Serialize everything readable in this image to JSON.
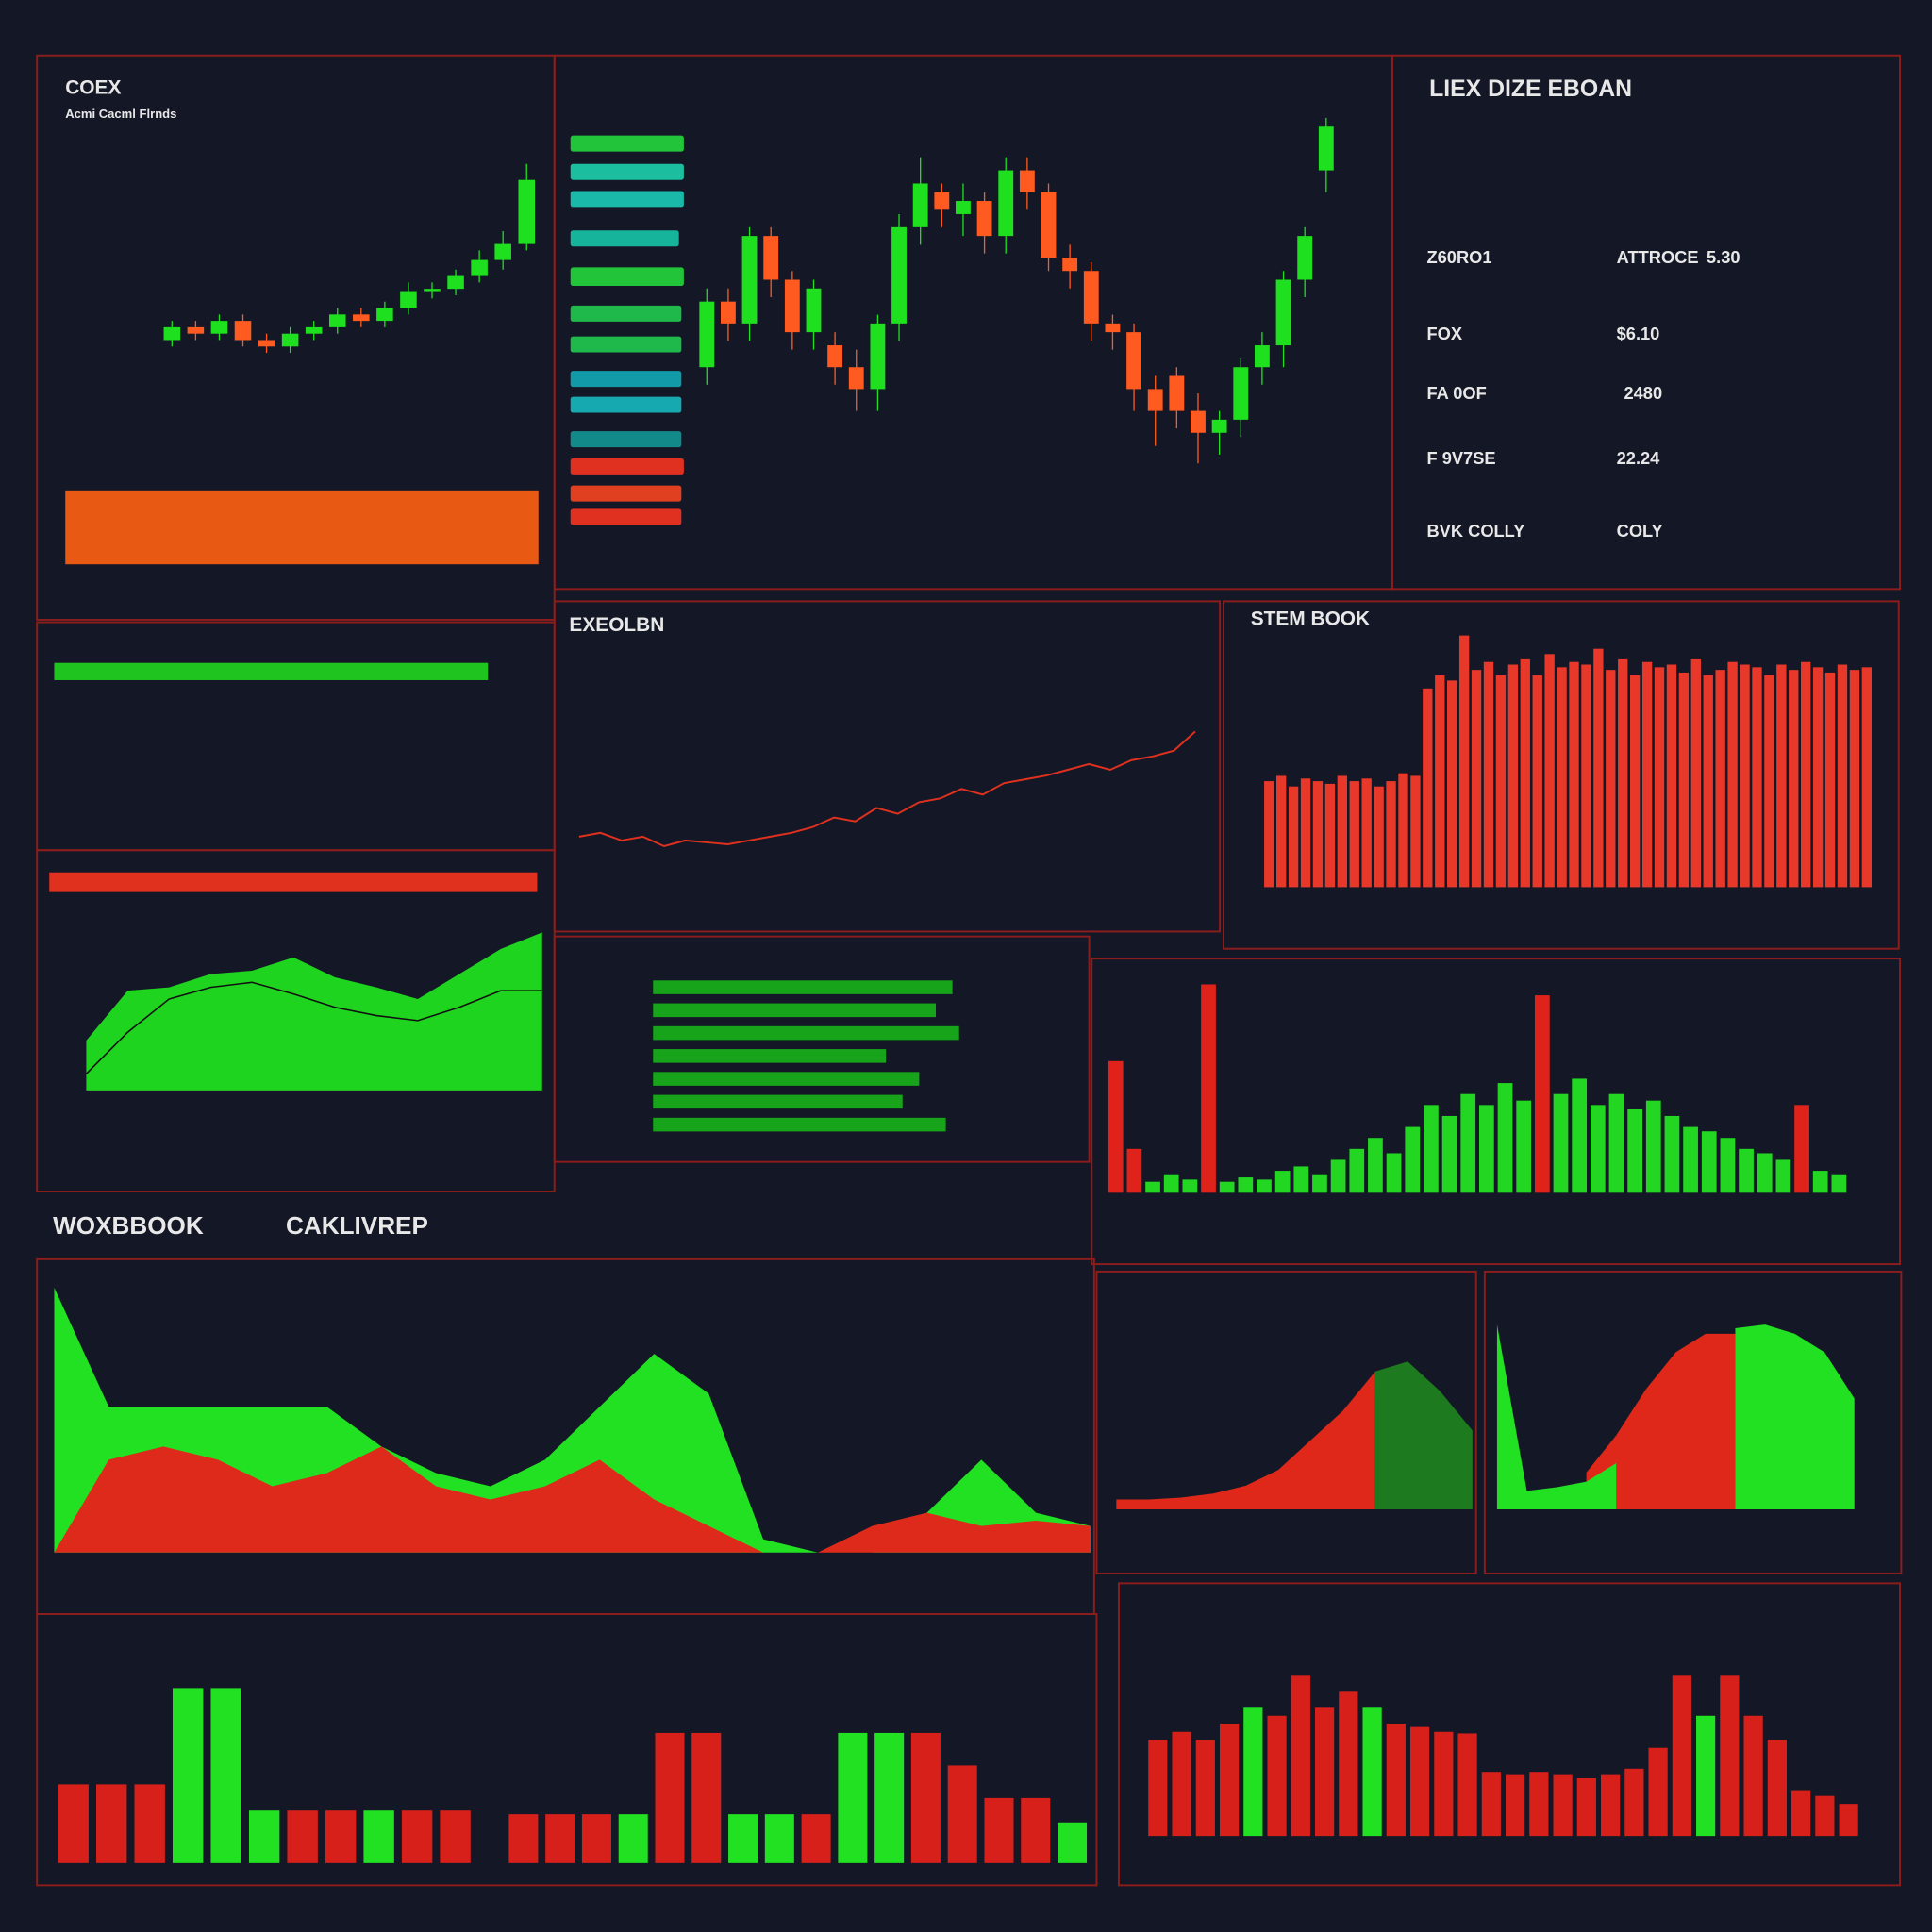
{
  "page": {
    "labels": [
      "WOXBBOOK",
      "CAKLIVREP"
    ],
    "info": {
      "title": "LIEX DIZE EBOAN",
      "rows": [
        [
          "Z60RO1",
          "ATTROCE",
          "5.30"
        ],
        [
          "FOX",
          "$6.10"
        ],
        [
          "FA 0OF",
          "2480"
        ],
        [
          "F 9V7SE",
          "22.24"
        ],
        [
          "BVK COLLY",
          "COLY"
        ]
      ]
    }
  },
  "chart_data": [
    {
      "type": "candlestick",
      "title": "COEX",
      "subtitle": "Acmi Cacml Flrnds",
      "ylim": [
        0,
        100
      ],
      "open": [
        40,
        44,
        42,
        46,
        40,
        38,
        42,
        44,
        48,
        46,
        50,
        55,
        56,
        60,
        65,
        70
      ],
      "close": [
        44,
        42,
        46,
        40,
        38,
        42,
        44,
        48,
        46,
        50,
        55,
        56,
        60,
        65,
        70,
        90
      ],
      "high": [
        46,
        46,
        48,
        48,
        42,
        44,
        46,
        50,
        50,
        52,
        58,
        58,
        62,
        68,
        74,
        95
      ],
      "low": [
        38,
        40,
        40,
        38,
        36,
        36,
        40,
        42,
        44,
        44,
        48,
        53,
        54,
        58,
        62,
        68
      ]
    },
    {
      "type": "candlestick",
      "ylim": [
        0,
        100
      ],
      "open": [
        40,
        55,
        50,
        70,
        60,
        48,
        45,
        40,
        35,
        50,
        72,
        80,
        75,
        78,
        70,
        85,
        80,
        65,
        62,
        50,
        48,
        35,
        38,
        30,
        25,
        28,
        40,
        45,
        60,
        85
      ],
      "close": [
        55,
        50,
        70,
        60,
        48,
        58,
        40,
        35,
        50,
        72,
        82,
        76,
        78,
        70,
        85,
        80,
        65,
        62,
        50,
        48,
        35,
        30,
        30,
        25,
        28,
        40,
        45,
        60,
        70,
        95
      ],
      "high": [
        58,
        58,
        72,
        72,
        62,
        60,
        48,
        44,
        52,
        75,
        88,
        82,
        82,
        80,
        88,
        88,
        82,
        68,
        64,
        52,
        50,
        38,
        40,
        34,
        30,
        42,
        48,
        62,
        72,
        97
      ],
      "low": [
        36,
        46,
        46,
        56,
        44,
        44,
        36,
        30,
        30,
        46,
        68,
        72,
        70,
        66,
        66,
        76,
        62,
        58,
        46,
        44,
        30,
        22,
        26,
        18,
        20,
        24,
        36,
        40,
        56,
        80
      ]
    },
    {
      "type": "line",
      "title": "EXEOLBN",
      "color": "#e0301e",
      "ylim": [
        0,
        100
      ],
      "values": [
        20,
        22,
        18,
        20,
        15,
        18,
        17,
        16,
        18,
        20,
        22,
        25,
        30,
        28,
        35,
        32,
        38,
        40,
        45,
        42,
        48,
        50,
        52,
        55,
        58,
        55,
        60,
        62,
        65,
        75
      ]
    },
    {
      "type": "bar",
      "title": "STEM BOOK",
      "ylim": [
        0,
        100
      ],
      "series": [
        {
          "color": "#e8382a",
          "values": [
            40,
            42,
            38,
            41,
            40,
            39,
            42,
            40,
            41,
            38,
            40,
            43,
            42,
            75,
            80,
            78,
            95,
            82,
            85,
            80,
            84,
            86,
            80,
            88,
            83,
            85,
            84,
            90,
            82,
            86,
            80,
            85,
            83,
            84,
            81,
            86,
            80,
            82,
            85,
            84,
            83,
            80,
            84,
            82,
            85,
            83,
            81,
            84,
            82,
            83
          ]
        }
      ]
    },
    {
      "type": "area",
      "ylim": [
        0,
        100
      ],
      "series": [
        {
          "color": "#1fd41f",
          "values": [
            30,
            60,
            62,
            70,
            72,
            80,
            68,
            62,
            55,
            70,
            85,
            95
          ]
        },
        {
          "color": "#111111",
          "fill": false,
          "values": [
            10,
            35,
            55,
            62,
            65,
            58,
            50,
            45,
            42,
            50,
            60,
            60
          ]
        }
      ]
    },
    {
      "type": "bar",
      "ylim": [
        0,
        100
      ],
      "series": [
        {
          "color": "#22d622",
          "values": [
            null,
            null,
            5,
            8,
            6,
            null,
            5,
            7,
            6,
            10,
            12,
            8,
            15,
            20,
            25,
            18,
            30,
            40,
            35,
            45,
            40,
            50,
            42,
            null,
            45,
            52,
            40,
            45,
            38,
            42,
            35,
            30,
            28,
            25,
            20,
            18,
            15,
            null,
            10,
            8
          ]
        },
        {
          "color": "#e0231a",
          "values": [
            60,
            20,
            null,
            null,
            null,
            95,
            null,
            null,
            null,
            null,
            null,
            null,
            null,
            null,
            null,
            null,
            null,
            null,
            null,
            null,
            null,
            null,
            null,
            90,
            null,
            null,
            null,
            null,
            null,
            null,
            null,
            null,
            null,
            null,
            null,
            null,
            null,
            40,
            null,
            null
          ]
        }
      ]
    },
    {
      "type": "hbar",
      "xlim": [
        0,
        100
      ],
      "color": "#17a31a",
      "values": [
        90,
        85,
        92,
        70,
        80,
        75,
        88
      ]
    },
    {
      "type": "area",
      "ylim": [
        0,
        100
      ],
      "series": [
        {
          "color": "#22e022",
          "values": [
            100,
            55,
            55,
            55,
            55,
            55,
            40,
            30,
            25,
            35,
            55,
            75,
            60,
            5,
            0,
            0,
            15,
            35,
            15,
            10
          ]
        },
        {
          "color": "#dd2a1a",
          "values": [
            0,
            35,
            40,
            35,
            25,
            30,
            40,
            25,
            20,
            25,
            35,
            20,
            10,
            0,
            0,
            10,
            15,
            10,
            12,
            10
          ]
        }
      ]
    },
    {
      "type": "area",
      "ylim": [
        0,
        100
      ],
      "series": [
        {
          "color": "#e0281a",
          "values": [
            5,
            5,
            6,
            8,
            12,
            20,
            35,
            50,
            70,
            null,
            null,
            null
          ]
        },
        {
          "color": "#1e7a1e",
          "values": [
            null,
            null,
            null,
            null,
            null,
            null,
            null,
            null,
            70,
            75,
            60,
            40
          ]
        }
      ]
    },
    {
      "type": "area",
      "ylim": [
        0,
        100
      ],
      "series": [
        {
          "color": "#e0281a",
          "values": [
            null,
            null,
            null,
            20,
            40,
            65,
            85,
            95,
            95,
            null,
            null,
            null,
            null
          ]
        },
        {
          "color": "#22e022",
          "values": [
            100,
            10,
            12,
            15,
            25,
            null,
            null,
            null,
            98,
            100,
            95,
            85,
            60
          ]
        }
      ]
    },
    {
      "type": "bar",
      "ylim": [
        0,
        100
      ],
      "series": [
        {
          "color": "#22e022",
          "values": [
            null,
            null,
            null,
            100,
            100,
            30,
            null,
            null,
            30,
            null,
            null
          ]
        },
        {
          "color": "#d8201a",
          "values": [
            45,
            45,
            45,
            null,
            null,
            null,
            30,
            30,
            null,
            30,
            30
          ]
        }
      ]
    },
    {
      "type": "bar",
      "ylim": [
        0,
        100
      ],
      "series": [
        {
          "color": "#22e022",
          "values": [
            null,
            null,
            null,
            30,
            null,
            null,
            30,
            30,
            null,
            80,
            80,
            null,
            null,
            null,
            null,
            25
          ]
        },
        {
          "color": "#d8201a",
          "values": [
            30,
            30,
            30,
            null,
            80,
            80,
            null,
            null,
            30,
            null,
            null,
            80,
            60,
            40,
            40,
            null
          ]
        }
      ]
    },
    {
      "type": "bar",
      "ylim": [
        0,
        100
      ],
      "series": [
        {
          "color": "#d8201a",
          "values": [
            60,
            65,
            60,
            70,
            null,
            75,
            100,
            80,
            90,
            null,
            70,
            68,
            65,
            64,
            40,
            38,
            40,
            38,
            36,
            38,
            42,
            55,
            100,
            null,
            100,
            75,
            60,
            28,
            25,
            20
          ]
        },
        {
          "color": "#22e022",
          "values": [
            null,
            null,
            null,
            null,
            80,
            null,
            null,
            null,
            null,
            80,
            null,
            null,
            null,
            null,
            null,
            null,
            null,
            null,
            null,
            null,
            null,
            null,
            null,
            75,
            null,
            null,
            null,
            null,
            null,
            null
          ]
        }
      ]
    }
  ]
}
